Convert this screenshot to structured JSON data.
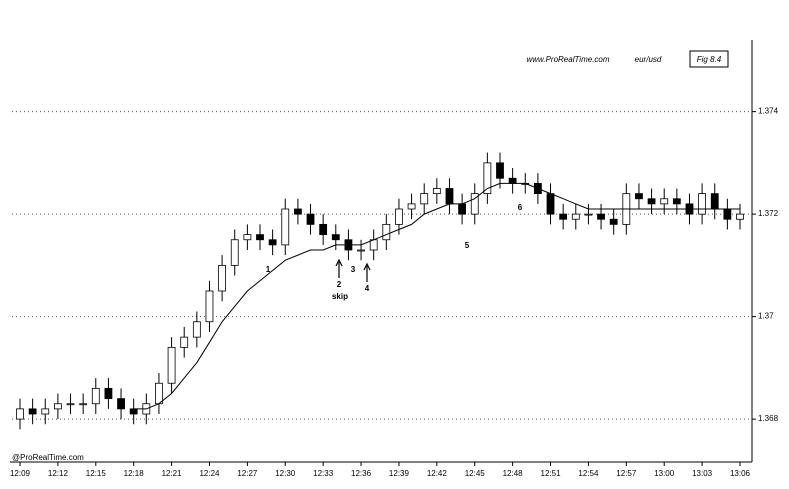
{
  "chart_data": {
    "type": "candlestick",
    "title": "Fig 8.4",
    "source": "www.ProRealTime.com",
    "symbol": "eur/usd",
    "footer": "@ProRealTime.com",
    "categories": [
      "12:09",
      null,
      null,
      "12:12",
      null,
      null,
      "12:15",
      null,
      null,
      "12:18",
      null,
      null,
      "12:21",
      null,
      null,
      "12:24",
      null,
      null,
      "12:27",
      null,
      null,
      "12:30",
      null,
      null,
      "12:33",
      null,
      null,
      "12:36",
      null,
      null,
      "12:39",
      null,
      null,
      "12:42",
      null,
      null,
      "12:45",
      null,
      null,
      "12:48",
      null,
      null,
      "12:51",
      null,
      null,
      "12:54",
      null,
      null,
      "12:57",
      null,
      null,
      "13:00",
      null,
      null,
      "13:03",
      null,
      null,
      "13:06"
    ],
    "open": [
      1.368,
      1.3682,
      1.3681,
      1.3682,
      1.3683,
      1.3683,
      1.3683,
      1.3686,
      1.3684,
      1.3682,
      1.3681,
      1.3683,
      1.3687,
      1.3694,
      1.3696,
      1.3699,
      1.3705,
      1.371,
      1.3715,
      1.3716,
      1.3715,
      1.3714,
      1.3721,
      1.372,
      1.3718,
      1.3716,
      1.3715,
      1.3713,
      1.3713,
      1.3715,
      1.3718,
      1.3721,
      1.3722,
      1.3724,
      1.3725,
      1.3722,
      1.372,
      1.3724,
      1.373,
      1.3727,
      1.3726,
      1.3726,
      1.3724,
      1.372,
      1.3719,
      1.372,
      1.372,
      1.3719,
      1.3718,
      1.3724,
      1.3723,
      1.3722,
      1.3723,
      1.3722,
      1.372,
      1.3724,
      1.3721,
      1.3719
    ],
    "high": [
      1.3684,
      1.3684,
      1.3684,
      1.3685,
      1.3685,
      1.3685,
      1.3688,
      1.3688,
      1.3686,
      1.3684,
      1.3685,
      1.3689,
      1.3696,
      1.3698,
      1.3701,
      1.3707,
      1.3712,
      1.3717,
      1.3718,
      1.3718,
      1.3717,
      1.3723,
      1.3723,
      1.3722,
      1.372,
      1.3718,
      1.3717,
      1.3715,
      1.3717,
      1.372,
      1.3723,
      1.3724,
      1.3726,
      1.3727,
      1.3727,
      1.3724,
      1.3726,
      1.3732,
      1.3732,
      1.3729,
      1.3728,
      1.3728,
      1.3726,
      1.3722,
      1.3722,
      1.3722,
      1.3722,
      1.3721,
      1.3726,
      1.3726,
      1.3725,
      1.3725,
      1.3725,
      1.3724,
      1.3726,
      1.3726,
      1.3723,
      1.3722
    ],
    "low": [
      1.3678,
      1.3679,
      1.3679,
      1.368,
      1.3681,
      1.3681,
      1.3681,
      1.3682,
      1.368,
      1.3679,
      1.3679,
      1.3681,
      1.3685,
      1.3692,
      1.3694,
      1.3697,
      1.3703,
      1.3708,
      1.3713,
      1.3713,
      1.3712,
      1.3712,
      1.3718,
      1.3716,
      1.3714,
      1.3713,
      1.3711,
      1.3711,
      1.3711,
      1.3713,
      1.3716,
      1.3719,
      1.372,
      1.3722,
      1.372,
      1.3718,
      1.3718,
      1.3722,
      1.3725,
      1.3724,
      1.3724,
      1.3722,
      1.3718,
      1.3717,
      1.3717,
      1.3718,
      1.3717,
      1.3716,
      1.3716,
      1.3721,
      1.372,
      1.372,
      1.372,
      1.3718,
      1.3718,
      1.3719,
      1.3717,
      1.3717
    ],
    "close": [
      1.3682,
      1.3681,
      1.3682,
      1.3683,
      1.3683,
      1.3683,
      1.3686,
      1.3684,
      1.3682,
      1.3681,
      1.3683,
      1.3687,
      1.3694,
      1.3696,
      1.3699,
      1.3705,
      1.371,
      1.3715,
      1.3716,
      1.3715,
      1.3714,
      1.3721,
      1.372,
      1.3718,
      1.3716,
      1.3715,
      1.3713,
      1.3713,
      1.3715,
      1.3718,
      1.3721,
      1.3722,
      1.3724,
      1.3725,
      1.3722,
      1.372,
      1.3724,
      1.373,
      1.3727,
      1.3726,
      1.3726,
      1.3724,
      1.372,
      1.3719,
      1.372,
      1.372,
      1.3719,
      1.3718,
      1.3724,
      1.3723,
      1.3722,
      1.3723,
      1.3722,
      1.372,
      1.3724,
      1.3721,
      1.3719,
      1.372
    ],
    "moving_average": [
      null,
      null,
      null,
      null,
      null,
      null,
      null,
      null,
      null,
      1.3682,
      1.3682,
      1.3683,
      1.3685,
      1.3688,
      1.3691,
      1.3695,
      1.3699,
      1.3702,
      1.3705,
      1.3707,
      1.3709,
      1.3711,
      1.3712,
      1.3713,
      1.3713,
      1.3714,
      1.3714,
      1.3714,
      1.3715,
      1.3716,
      1.3717,
      1.3718,
      1.372,
      1.3721,
      1.3722,
      1.3722,
      1.3723,
      1.3725,
      1.3726,
      1.3726,
      1.3726,
      1.3725,
      1.3724,
      1.3723,
      1.3722,
      1.3721,
      1.3721,
      1.3721,
      1.3721,
      1.3721,
      1.3721,
      1.3721,
      1.3721,
      1.3721,
      1.3721,
      1.3721,
      1.3721,
      1.3721
    ],
    "up_color": "#ffffff",
    "down_color": "#000000",
    "line_color": "#000000",
    "annotations": [
      "1",
      "2",
      "skip",
      "3",
      "4",
      "5",
      "6"
    ],
    "ylim": [
      1.3673,
      1.3753
    ],
    "yticks": [
      1.368,
      1.37,
      1.372,
      1.374
    ],
    "grid": true
  }
}
